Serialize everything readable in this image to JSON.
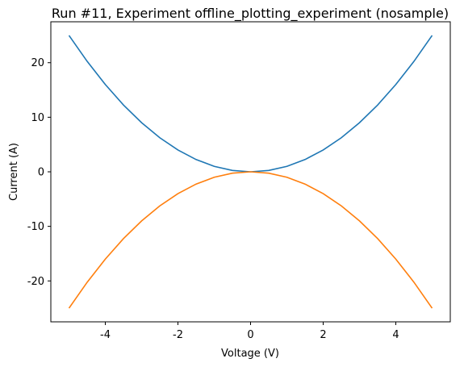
{
  "chart_data": {
    "type": "line",
    "title": "Run #11, Experiment offline_plotting_experiment (nosample)",
    "xlabel": "Voltage (V)",
    "ylabel": "Current (A)",
    "xlim": [
      -5.5,
      5.5
    ],
    "ylim": [
      -27.5,
      27.5
    ],
    "xticks": [
      -4,
      -2,
      0,
      2,
      4
    ],
    "xtick_labels": [
      "-4",
      "-2",
      "0",
      "2",
      "4"
    ],
    "yticks": [
      -20,
      -10,
      0,
      10,
      20
    ],
    "ytick_labels": [
      "-20",
      "-10",
      "0",
      "10",
      "20"
    ],
    "grid": false,
    "x": [
      -5,
      -4.5,
      -4,
      -3.5,
      -3,
      -2.5,
      -2,
      -1.5,
      -1,
      -0.5,
      0,
      0.5,
      1,
      1.5,
      2,
      2.5,
      3,
      3.5,
      4,
      4.5,
      5
    ],
    "series": [
      {
        "color": "#1f77b4",
        "values": [
          25,
          20.25,
          16,
          12.25,
          9,
          6.25,
          4,
          2.25,
          1,
          0.25,
          0,
          0.25,
          1,
          2.25,
          4,
          6.25,
          9,
          12.25,
          16,
          20.25,
          25
        ]
      },
      {
        "color": "#ff7f0e",
        "values": [
          -25,
          -20.25,
          -16,
          -12.25,
          -9,
          -6.25,
          -4,
          -2.25,
          -1,
          -0.25,
          0,
          -0.25,
          -1,
          -2.25,
          -4,
          -6.25,
          -9,
          -12.25,
          -16,
          -20.25,
          -25
        ]
      }
    ]
  }
}
